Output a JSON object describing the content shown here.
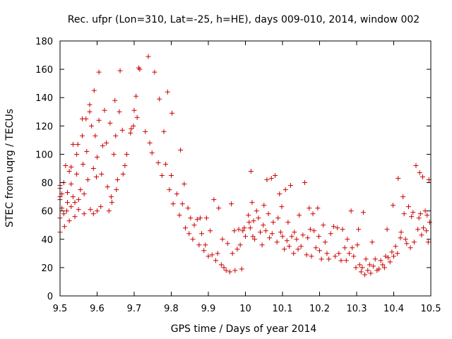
{
  "chart_data": {
    "type": "scatter",
    "title": "Rec. ufpr (Lon=310, Lat=-25, h=HE), days 009-010, 2014, window 002",
    "xlabel": "GPS time / Days of year 2014",
    "ylabel": "STEC from uqrg / TECUs",
    "xlim": [
      9.5,
      10.5
    ],
    "ylim": [
      0,
      180
    ],
    "xticks": [
      9.5,
      9.6,
      9.7,
      9.8,
      9.9,
      10,
      10.1,
      10.2,
      10.3,
      10.4,
      10.5
    ],
    "xtick_labels": [
      "9.5",
      "9.6",
      "9.7",
      "9.8",
      "9.9",
      "10",
      "10.1",
      "10.2",
      "10.3",
      "10.4",
      "10.5"
    ],
    "yticks": [
      0,
      20,
      40,
      60,
      80,
      100,
      120,
      140,
      160,
      180
    ],
    "ytick_labels": [
      "0",
      "20",
      "40",
      "60",
      "80",
      "100",
      "120",
      "140",
      "160",
      "180"
    ],
    "marker": "+",
    "color": "#cc0000",
    "grid": false,
    "points": [
      [
        9.5,
        45
      ],
      [
        9.5,
        55
      ],
      [
        9.5,
        68
      ],
      [
        9.5,
        70
      ],
      [
        9.5,
        76
      ],
      [
        9.5,
        78
      ],
      [
        9.505,
        62
      ],
      [
        9.505,
        72
      ],
      [
        9.51,
        58
      ],
      [
        9.51,
        80
      ],
      [
        9.512,
        49
      ],
      [
        9.515,
        92
      ],
      [
        9.518,
        60
      ],
      [
        9.52,
        66
      ],
      [
        9.52,
        73
      ],
      [
        9.525,
        53
      ],
      [
        9.525,
        88
      ],
      [
        9.53,
        91
      ],
      [
        9.53,
        79
      ],
      [
        9.53,
        63
      ],
      [
        9.535,
        107
      ],
      [
        9.535,
        70
      ],
      [
        9.54,
        56
      ],
      [
        9.54,
        66
      ],
      [
        9.545,
        86
      ],
      [
        9.545,
        100
      ],
      [
        9.548,
        107
      ],
      [
        9.55,
        61
      ],
      [
        9.55,
        68
      ],
      [
        9.555,
        75
      ],
      [
        9.56,
        125
      ],
      [
        9.56,
        113
      ],
      [
        9.562,
        93
      ],
      [
        9.565,
        58
      ],
      [
        9.565,
        72
      ],
      [
        9.57,
        125
      ],
      [
        9.572,
        102
      ],
      [
        9.575,
        82
      ],
      [
        9.58,
        135
      ],
      [
        9.58,
        130
      ],
      [
        9.582,
        61
      ],
      [
        9.585,
        120
      ],
      [
        9.59,
        90
      ],
      [
        9.59,
        58
      ],
      [
        9.592,
        145
      ],
      [
        9.595,
        113
      ],
      [
        9.598,
        84
      ],
      [
        9.6,
        60
      ],
      [
        9.6,
        98
      ],
      [
        9.605,
        158
      ],
      [
        9.605,
        124
      ],
      [
        9.61,
        63
      ],
      [
        9.612,
        86
      ],
      [
        9.615,
        106
      ],
      [
        9.62,
        131
      ],
      [
        9.625,
        108
      ],
      [
        9.628,
        77
      ],
      [
        9.632,
        60
      ],
      [
        9.635,
        122
      ],
      [
        9.638,
        70
      ],
      [
        9.64,
        66
      ],
      [
        9.645,
        100
      ],
      [
        9.648,
        138
      ],
      [
        9.65,
        113
      ],
      [
        9.652,
        75
      ],
      [
        9.655,
        82
      ],
      [
        9.66,
        130
      ],
      [
        9.662,
        159
      ],
      [
        9.668,
        117
      ],
      [
        9.67,
        86
      ],
      [
        9.675,
        92
      ],
      [
        9.68,
        100
      ],
      [
        9.69,
        115
      ],
      [
        9.692,
        118
      ],
      [
        9.698,
        120
      ],
      [
        9.7,
        131
      ],
      [
        9.705,
        141
      ],
      [
        9.708,
        126
      ],
      [
        9.712,
        161
      ],
      [
        9.715,
        160
      ],
      [
        9.73,
        116
      ],
      [
        9.738,
        169
      ],
      [
        9.742,
        108
      ],
      [
        9.748,
        101
      ],
      [
        9.755,
        158
      ],
      [
        9.765,
        94
      ],
      [
        9.768,
        139
      ],
      [
        9.775,
        85
      ],
      [
        9.78,
        116
      ],
      [
        9.785,
        93
      ],
      [
        9.79,
        144
      ],
      [
        9.795,
        75
      ],
      [
        9.8,
        85
      ],
      [
        9.802,
        129
      ],
      [
        9.805,
        65
      ],
      [
        9.815,
        72
      ],
      [
        9.822,
        57
      ],
      [
        9.825,
        103
      ],
      [
        9.83,
        65
      ],
      [
        9.835,
        79
      ],
      [
        9.838,
        48
      ],
      [
        9.845,
        62
      ],
      [
        9.848,
        44
      ],
      [
        9.852,
        55
      ],
      [
        9.858,
        40
      ],
      [
        9.862,
        50
      ],
      [
        9.87,
        54
      ],
      [
        9.875,
        36
      ],
      [
        9.878,
        55
      ],
      [
        9.882,
        44
      ],
      [
        9.888,
        32
      ],
      [
        9.892,
        36
      ],
      [
        9.895,
        55
      ],
      [
        9.9,
        28
      ],
      [
        9.905,
        46
      ],
      [
        9.91,
        29
      ],
      [
        9.915,
        68
      ],
      [
        9.92,
        25
      ],
      [
        9.925,
        30
      ],
      [
        9.928,
        62
      ],
      [
        9.935,
        22
      ],
      [
        9.938,
        40
      ],
      [
        9.942,
        20
      ],
      [
        9.948,
        18
      ],
      [
        9.952,
        37
      ],
      [
        9.958,
        17
      ],
      [
        9.962,
        65
      ],
      [
        9.965,
        30
      ],
      [
        9.97,
        46
      ],
      [
        9.972,
        18
      ],
      [
        9.978,
        33
      ],
      [
        9.982,
        47
      ],
      [
        9.986,
        36
      ],
      [
        9.99,
        19
      ],
      [
        9.993,
        46
      ],
      [
        9.997,
        48
      ],
      [
        10.0,
        42
      ],
      [
        10.008,
        57
      ],
      [
        10.01,
        52
      ],
      [
        10.013,
        48
      ],
      [
        10.015,
        88
      ],
      [
        10.018,
        66
      ],
      [
        10.02,
        42
      ],
      [
        10.022,
        53
      ],
      [
        10.025,
        40
      ],
      [
        10.03,
        60
      ],
      [
        10.035,
        55
      ],
      [
        10.04,
        45
      ],
      [
        10.045,
        36
      ],
      [
        10.048,
        50
      ],
      [
        10.05,
        64
      ],
      [
        10.055,
        46
      ],
      [
        10.058,
        82
      ],
      [
        10.062,
        58
      ],
      [
        10.065,
        41
      ],
      [
        10.07,
        83
      ],
      [
        10.072,
        44
      ],
      [
        10.075,
        52
      ],
      [
        10.08,
        85
      ],
      [
        10.085,
        38
      ],
      [
        10.088,
        55
      ],
      [
        10.092,
        72
      ],
      [
        10.095,
        45
      ],
      [
        10.098,
        63
      ],
      [
        10.1,
        42
      ],
      [
        10.105,
        33
      ],
      [
        10.108,
        75
      ],
      [
        10.112,
        39
      ],
      [
        10.115,
        52
      ],
      [
        10.118,
        35
      ],
      [
        10.122,
        78
      ],
      [
        10.125,
        42
      ],
      [
        10.13,
        30
      ],
      [
        10.132,
        45
      ],
      [
        10.138,
        40
      ],
      [
        10.142,
        33
      ],
      [
        10.145,
        57
      ],
      [
        10.15,
        35
      ],
      [
        10.155,
        43
      ],
      [
        10.16,
        80
      ],
      [
        10.165,
        29
      ],
      [
        10.168,
        41
      ],
      [
        10.172,
        62
      ],
      [
        10.175,
        47
      ],
      [
        10.178,
        28
      ],
      [
        10.182,
        58
      ],
      [
        10.185,
        46
      ],
      [
        10.19,
        34
      ],
      [
        10.195,
        62
      ],
      [
        10.198,
        42
      ],
      [
        10.2,
        32
      ],
      [
        10.205,
        26
      ],
      [
        10.21,
        50
      ],
      [
        10.215,
        38
      ],
      [
        10.22,
        30
      ],
      [
        10.225,
        26
      ],
      [
        10.23,
        44
      ],
      [
        10.238,
        49
      ],
      [
        10.242,
        28
      ],
      [
        10.248,
        48
      ],
      [
        10.252,
        30
      ],
      [
        10.258,
        25
      ],
      [
        10.262,
        47
      ],
      [
        10.268,
        34
      ],
      [
        10.272,
        25
      ],
      [
        10.275,
        40
      ],
      [
        10.28,
        30
      ],
      [
        10.285,
        60
      ],
      [
        10.288,
        34
      ],
      [
        10.292,
        28
      ],
      [
        10.298,
        20
      ],
      [
        10.302,
        36
      ],
      [
        10.305,
        47
      ],
      [
        10.308,
        22
      ],
      [
        10.312,
        17
      ],
      [
        10.315,
        20
      ],
      [
        10.318,
        59
      ],
      [
        10.322,
        15
      ],
      [
        10.325,
        26
      ],
      [
        10.33,
        18
      ],
      [
        10.335,
        22
      ],
      [
        10.338,
        16
      ],
      [
        10.342,
        38
      ],
      [
        10.345,
        21
      ],
      [
        10.35,
        26
      ],
      [
        10.355,
        18
      ],
      [
        10.36,
        19
      ],
      [
        10.365,
        25
      ],
      [
        10.37,
        22
      ],
      [
        10.375,
        20
      ],
      [
        10.378,
        28
      ],
      [
        10.382,
        47
      ],
      [
        10.385,
        27
      ],
      [
        10.39,
        24
      ],
      [
        10.395,
        31
      ],
      [
        10.398,
        64
      ],
      [
        10.4,
        28
      ],
      [
        10.405,
        35
      ],
      [
        10.41,
        30
      ],
      [
        10.412,
        83
      ],
      [
        10.418,
        41
      ],
      [
        10.42,
        45
      ],
      [
        10.425,
        70
      ],
      [
        10.428,
        58
      ],
      [
        10.432,
        40
      ],
      [
        10.435,
        37
      ],
      [
        10.44,
        63
      ],
      [
        10.445,
        34
      ],
      [
        10.448,
        56
      ],
      [
        10.452,
        59
      ],
      [
        10.455,
        38
      ],
      [
        10.46,
        92
      ],
      [
        10.465,
        47
      ],
      [
        10.468,
        55
      ],
      [
        10.47,
        87
      ],
      [
        10.472,
        58
      ],
      [
        10.475,
        43
      ],
      [
        10.478,
        84
      ],
      [
        10.48,
        48
      ],
      [
        10.485,
        60
      ],
      [
        10.488,
        46
      ],
      [
        10.49,
        57
      ],
      [
        10.493,
        38
      ],
      [
        10.495,
        82
      ],
      [
        10.497,
        52
      ]
    ]
  }
}
